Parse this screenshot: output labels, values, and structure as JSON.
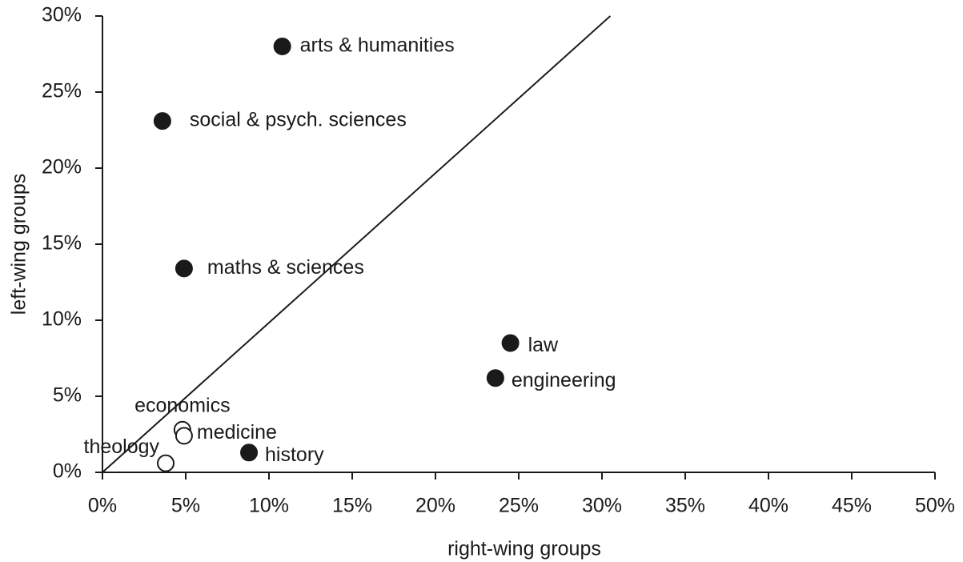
{
  "chart_data": {
    "type": "scatter",
    "x_label": "right-wing groups",
    "y_label": "left-wing groups",
    "color": "#1a1a1a",
    "points": [
      {
        "label": "arts & humanities",
        "x": 10.8,
        "y": 28.0,
        "filled": true
      },
      {
        "label": "social & psych. sciences",
        "x": 3.6,
        "y": 23.1,
        "filled": true
      },
      {
        "label": "maths & sciences",
        "x": 4.9,
        "y": 13.4,
        "filled": true
      },
      {
        "label": "law",
        "x": 24.5,
        "y": 8.5,
        "filled": true
      },
      {
        "label": "engineering",
        "x": 23.6,
        "y": 6.2,
        "filled": true
      },
      {
        "label": "history",
        "x": 8.8,
        "y": 1.3,
        "filled": true
      },
      {
        "label": "economics",
        "x": 4.8,
        "y": 2.8,
        "filled": false
      },
      {
        "label": "medicine",
        "x": 4.9,
        "y": 2.4,
        "filled": false
      },
      {
        "label": "theology",
        "x": 3.8,
        "y": 0.6,
        "filled": false
      }
    ],
    "diagonal": {
      "x": [
        0,
        30.5
      ],
      "y": [
        0,
        30
      ]
    },
    "xlim": [
      0,
      50
    ],
    "ylim": [
      0,
      30
    ],
    "xticks": [
      {
        "value": 0,
        "label": "0%"
      },
      {
        "value": 5,
        "label": "5%"
      },
      {
        "value": 10,
        "label": "10%"
      },
      {
        "value": 15,
        "label": "15%"
      },
      {
        "value": 20,
        "label": "20%"
      },
      {
        "value": 25,
        "label": "25%"
      },
      {
        "value": 30,
        "label": "30%"
      },
      {
        "value": 35,
        "label": "35%"
      },
      {
        "value": 40,
        "label": "40%"
      },
      {
        "value": 45,
        "label": "45%"
      },
      {
        "value": 50,
        "label": "50%"
      }
    ],
    "yticks": [
      {
        "value": 0,
        "label": "0%"
      },
      {
        "value": 5,
        "label": "5%"
      },
      {
        "value": 10,
        "label": "10%"
      },
      {
        "value": 15,
        "label": "15%"
      },
      {
        "value": 20,
        "label": "20%"
      },
      {
        "value": 25,
        "label": "25%"
      },
      {
        "value": 30,
        "label": "30%"
      }
    ]
  }
}
